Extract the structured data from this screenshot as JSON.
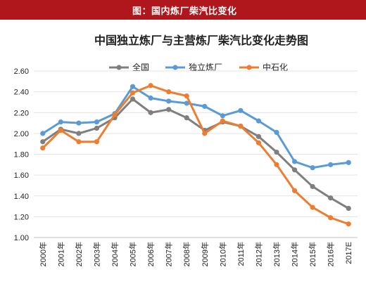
{
  "banner": {
    "text": "图：国内炼厂柴汽比变化"
  },
  "chart_data": {
    "type": "line",
    "title": "中国独立炼厂与主营炼厂柴汽比变化走势图",
    "xlabel": "",
    "ylabel": "",
    "categories": [
      "2000年",
      "2001年",
      "2002年",
      "2003年",
      "2004年",
      "2005年",
      "2006年",
      "2007年",
      "2008年",
      "2009年",
      "2010年",
      "2011年",
      "2012年",
      "2013年",
      "2014年",
      "2015年",
      "2016年",
      "2017E"
    ],
    "ylim": [
      1.0,
      2.6
    ],
    "yticks": [
      "1.00",
      "1.20",
      "1.40",
      "1.60",
      "1.80",
      "2.00",
      "2.20",
      "2.40",
      "2.60"
    ],
    "legend_position": "top",
    "grid": "horizontal",
    "series": [
      {
        "name": "全国",
        "color": "#7f7f7f",
        "values": [
          1.92,
          2.04,
          2.0,
          2.05,
          2.15,
          2.33,
          2.2,
          2.23,
          2.15,
          2.03,
          2.11,
          2.07,
          1.97,
          1.82,
          1.65,
          1.49,
          1.38,
          1.28
        ]
      },
      {
        "name": "独立炼厂",
        "color": "#5b9bd5",
        "values": [
          2.0,
          2.11,
          2.1,
          2.11,
          2.19,
          2.45,
          2.34,
          2.31,
          2.29,
          2.26,
          2.17,
          2.22,
          2.12,
          2.01,
          1.73,
          1.67,
          1.7,
          1.72
        ]
      },
      {
        "name": "中石化",
        "color": "#ed7d31",
        "values": [
          1.86,
          2.03,
          1.92,
          1.92,
          2.18,
          2.39,
          2.46,
          2.4,
          2.36,
          2.0,
          2.12,
          2.07,
          1.91,
          1.7,
          1.45,
          1.29,
          1.19,
          1.13
        ]
      }
    ]
  }
}
